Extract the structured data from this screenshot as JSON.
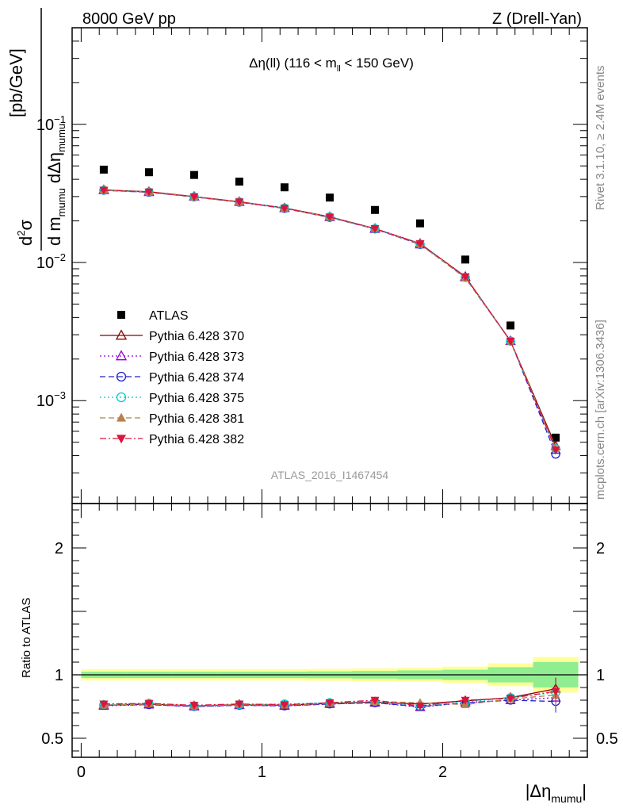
{
  "header": {
    "left": "8000 GeV pp",
    "right": "Z (Drell-Yan)"
  },
  "side_labels": {
    "rivet": "Rivet 3.1.10, ≥ 2.4M events",
    "mcplots": "mcplots.cern.ch [arXiv:1306.3436]"
  },
  "chart_data": [
    {
      "type": "scatter",
      "panel": "main",
      "title_parts": {
        "a": "Δη(ll) (116 < m",
        "sub": "ll",
        "b": " < 150 GeV)"
      },
      "ylabel_parts": {
        "unit": "[pb/GeV]"
      },
      "yscale": "log",
      "ylim": [
        0.00018,
        0.5
      ],
      "xlim": [
        -0.05,
        2.8
      ],
      "y_ticks": [
        {
          "value": 0.1,
          "label": "10",
          "exp": "−1"
        },
        {
          "value": 0.01,
          "label": "10",
          "exp": "−2"
        },
        {
          "value": 0.001,
          "label": "10",
          "exp": "−3"
        }
      ],
      "watermark": "ATLAS_2016_I1467454",
      "x": [
        0.125,
        0.375,
        0.625,
        0.875,
        1.125,
        1.375,
        1.625,
        1.875,
        2.125,
        2.375,
        2.625
      ],
      "series": [
        {
          "name": "ATLAS",
          "color": "#000000",
          "marker": "square",
          "line": "none",
          "values": [
            0.047,
            0.045,
            0.043,
            0.0385,
            0.035,
            0.0295,
            0.024,
            0.0192,
            0.0105,
            0.0035,
            0.00054
          ]
        },
        {
          "name": "Pythia 6.428 370",
          "color": "#8b0000",
          "marker": "triangle-open",
          "line": "solid",
          "values": [
            0.0335,
            0.0325,
            0.03,
            0.0275,
            0.0248,
            0.0214,
            0.0176,
            0.0137,
            0.0079,
            0.0027,
            0.00047
          ]
        },
        {
          "name": "Pythia 6.428 373",
          "color": "#9400d3",
          "marker": "triangle-open",
          "line": "dotted",
          "values": [
            0.0333,
            0.0323,
            0.0299,
            0.0274,
            0.0247,
            0.0213,
            0.0175,
            0.0135,
            0.0078,
            0.0027,
            0.00044
          ]
        },
        {
          "name": "Pythia 6.428 374",
          "color": "#2020d0",
          "marker": "circle-open",
          "line": "dashed",
          "values": [
            0.0333,
            0.0322,
            0.0298,
            0.0273,
            0.0246,
            0.0212,
            0.0175,
            0.0135,
            0.0078,
            0.0027,
            0.00041
          ]
        },
        {
          "name": "Pythia 6.428 375",
          "color": "#00ced1",
          "marker": "circle-open",
          "line": "dotted",
          "values": [
            0.0334,
            0.0324,
            0.0299,
            0.0275,
            0.0248,
            0.0214,
            0.0176,
            0.0136,
            0.0078,
            0.0027,
            0.00045
          ]
        },
        {
          "name": "Pythia 6.428 381",
          "color": "#b8804a",
          "marker": "triangle-filled",
          "line": "dashed",
          "values": [
            0.0333,
            0.0323,
            0.0298,
            0.0274,
            0.0246,
            0.0213,
            0.0176,
            0.0136,
            0.0077,
            0.0027,
            0.00045
          ]
        },
        {
          "name": "Pythia 6.428 382",
          "color": "#dc143c",
          "marker": "triangle-down-filled",
          "line": "dashdot",
          "values": [
            0.0334,
            0.0324,
            0.0299,
            0.0275,
            0.0247,
            0.0213,
            0.0176,
            0.0137,
            0.0079,
            0.0027,
            0.00044
          ]
        }
      ]
    },
    {
      "type": "scatter",
      "panel": "ratio",
      "ylabel": "Ratio to ATLAS",
      "ylim": [
        0.35,
        2.35
      ],
      "xlim": [
        -0.05,
        2.8
      ],
      "y_ticks": [
        {
          "value": 0.5,
          "label": "0.5"
        },
        {
          "value": 1,
          "label": "1"
        },
        {
          "value": 2,
          "label": "2"
        }
      ],
      "x_ticks": [
        {
          "value": 0,
          "label": "0"
        },
        {
          "value": 1,
          "label": "1"
        },
        {
          "value": 2,
          "label": "2"
        }
      ],
      "xlabel_parts": {
        "main": "|Δη",
        "sub": "mumu",
        "end": "|"
      },
      "bands": {
        "bin_edges": [
          0,
          0.25,
          0.5,
          0.75,
          1.0,
          1.25,
          1.5,
          1.75,
          2.0,
          2.25,
          2.5,
          2.75
        ],
        "inner_half_width": [
          0.025,
          0.025,
          0.025,
          0.025,
          0.025,
          0.027,
          0.03,
          0.035,
          0.04,
          0.06,
          0.1
        ],
        "outer_half_width": [
          0.045,
          0.045,
          0.045,
          0.045,
          0.045,
          0.047,
          0.05,
          0.055,
          0.065,
          0.09,
          0.14
        ],
        "inner_color": "#90ee90",
        "outer_color": "#ffff99"
      },
      "x": [
        0.125,
        0.375,
        0.625,
        0.875,
        1.125,
        1.375,
        1.625,
        1.875,
        2.125,
        2.375,
        2.625
      ],
      "series": [
        {
          "name": "Pythia 6.428 370",
          "values": [
            0.76,
            0.77,
            0.755,
            0.765,
            0.76,
            0.775,
            0.785,
            0.77,
            0.795,
            0.82,
            0.89
          ]
        },
        {
          "name": "Pythia 6.428 373",
          "values": [
            0.755,
            0.765,
            0.75,
            0.76,
            0.755,
            0.77,
            0.78,
            0.745,
            0.78,
            0.8,
            0.82
          ]
        },
        {
          "name": "Pythia 6.428 374",
          "values": [
            0.76,
            0.765,
            0.75,
            0.76,
            0.755,
            0.77,
            0.78,
            0.75,
            0.78,
            0.8,
            0.79
          ]
        },
        {
          "name": "Pythia 6.428 375",
          "values": [
            0.765,
            0.775,
            0.755,
            0.765,
            0.77,
            0.78,
            0.79,
            0.755,
            0.785,
            0.82,
            0.86
          ]
        },
        {
          "name": "Pythia 6.428 381",
          "values": [
            0.76,
            0.77,
            0.755,
            0.765,
            0.76,
            0.775,
            0.79,
            0.78,
            0.765,
            0.81,
            0.84
          ]
        },
        {
          "name": "Pythia 6.428 382",
          "values": [
            0.77,
            0.775,
            0.76,
            0.77,
            0.765,
            0.78,
            0.8,
            0.755,
            0.8,
            0.815,
            0.87
          ]
        }
      ]
    }
  ]
}
